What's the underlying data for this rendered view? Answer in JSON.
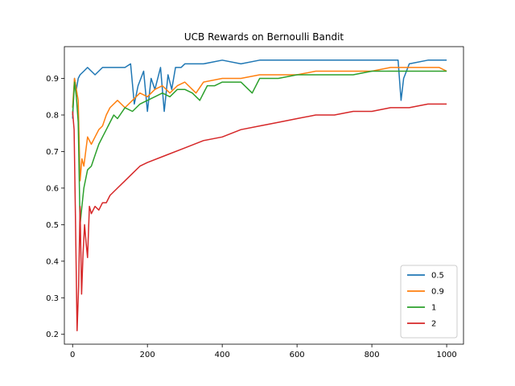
{
  "chart_data": {
    "type": "line",
    "title": "UCB Rewards on Bernoulli Bandit",
    "xlabel": "",
    "ylabel": "",
    "xlim": [
      -22,
      1045
    ],
    "ylim": [
      0.173,
      0.987
    ],
    "xticks": [
      0,
      200,
      400,
      600,
      800,
      1000
    ],
    "yticks": [
      0.2,
      0.3,
      0.4,
      0.5,
      0.6,
      0.7,
      0.8,
      0.9
    ],
    "grid": false,
    "legend_position": "bottom-right",
    "series": [
      {
        "name": "0.5",
        "color": "#1f77b4",
        "x": [
          0,
          5,
          10,
          15,
          20,
          30,
          40,
          50,
          60,
          80,
          100,
          120,
          140,
          155,
          165,
          175,
          190,
          200,
          210,
          220,
          235,
          245,
          255,
          265,
          275,
          290,
          300,
          350,
          400,
          450,
          500,
          550,
          600,
          650,
          700,
          750,
          800,
          850,
          870,
          878,
          885,
          900,
          950,
          1000
        ],
        "values": [
          0.79,
          0.9,
          0.87,
          0.9,
          0.91,
          0.92,
          0.93,
          0.92,
          0.91,
          0.93,
          0.93,
          0.93,
          0.93,
          0.94,
          0.83,
          0.88,
          0.92,
          0.81,
          0.9,
          0.87,
          0.93,
          0.81,
          0.91,
          0.87,
          0.93,
          0.93,
          0.94,
          0.94,
          0.95,
          0.94,
          0.95,
          0.95,
          0.95,
          0.95,
          0.95,
          0.95,
          0.95,
          0.95,
          0.95,
          0.84,
          0.9,
          0.94,
          0.95,
          0.95
        ]
      },
      {
        "name": "0.9",
        "color": "#ff7f0e",
        "x": [
          0,
          5,
          10,
          15,
          20,
          25,
          30,
          40,
          50,
          60,
          70,
          80,
          90,
          100,
          120,
          140,
          160,
          180,
          200,
          220,
          240,
          260,
          280,
          300,
          330,
          350,
          400,
          450,
          500,
          550,
          600,
          650,
          700,
          750,
          800,
          850,
          900,
          950,
          980,
          1000
        ],
        "values": [
          0.82,
          0.9,
          0.87,
          0.84,
          0.62,
          0.68,
          0.66,
          0.74,
          0.72,
          0.74,
          0.76,
          0.77,
          0.8,
          0.82,
          0.84,
          0.82,
          0.84,
          0.86,
          0.85,
          0.87,
          0.88,
          0.86,
          0.88,
          0.89,
          0.86,
          0.89,
          0.9,
          0.9,
          0.91,
          0.91,
          0.91,
          0.92,
          0.92,
          0.92,
          0.92,
          0.93,
          0.93,
          0.93,
          0.93,
          0.92
        ]
      },
      {
        "name": "1",
        "color": "#2ca02c",
        "x": [
          0,
          5,
          10,
          15,
          20,
          25,
          30,
          40,
          50,
          60,
          70,
          80,
          90,
          100,
          110,
          120,
          140,
          160,
          180,
          200,
          220,
          240,
          260,
          280,
          300,
          320,
          340,
          360,
          380,
          400,
          450,
          480,
          500,
          550,
          600,
          650,
          700,
          750,
          800,
          850,
          900,
          950,
          1000
        ],
        "values": [
          0.8,
          0.89,
          0.85,
          0.78,
          0.5,
          0.55,
          0.6,
          0.65,
          0.66,
          0.69,
          0.72,
          0.74,
          0.76,
          0.78,
          0.8,
          0.79,
          0.82,
          0.81,
          0.83,
          0.84,
          0.85,
          0.86,
          0.85,
          0.87,
          0.87,
          0.86,
          0.84,
          0.88,
          0.88,
          0.89,
          0.89,
          0.86,
          0.9,
          0.9,
          0.91,
          0.91,
          0.91,
          0.91,
          0.92,
          0.92,
          0.92,
          0.92,
          0.92
        ]
      },
      {
        "name": "2",
        "color": "#d62728",
        "x": [
          0,
          4,
          8,
          12,
          16,
          20,
          24,
          28,
          32,
          36,
          40,
          45,
          50,
          60,
          70,
          80,
          90,
          100,
          120,
          140,
          160,
          180,
          200,
          250,
          300,
          350,
          400,
          450,
          500,
          550,
          600,
          650,
          700,
          750,
          800,
          850,
          900,
          950,
          1000
        ],
        "values": [
          0.81,
          0.76,
          0.5,
          0.21,
          0.33,
          0.55,
          0.31,
          0.42,
          0.5,
          0.45,
          0.41,
          0.55,
          0.53,
          0.55,
          0.54,
          0.56,
          0.56,
          0.58,
          0.6,
          0.62,
          0.64,
          0.66,
          0.67,
          0.69,
          0.71,
          0.73,
          0.74,
          0.76,
          0.77,
          0.78,
          0.79,
          0.8,
          0.8,
          0.81,
          0.81,
          0.82,
          0.82,
          0.83,
          0.83
        ]
      }
    ]
  }
}
